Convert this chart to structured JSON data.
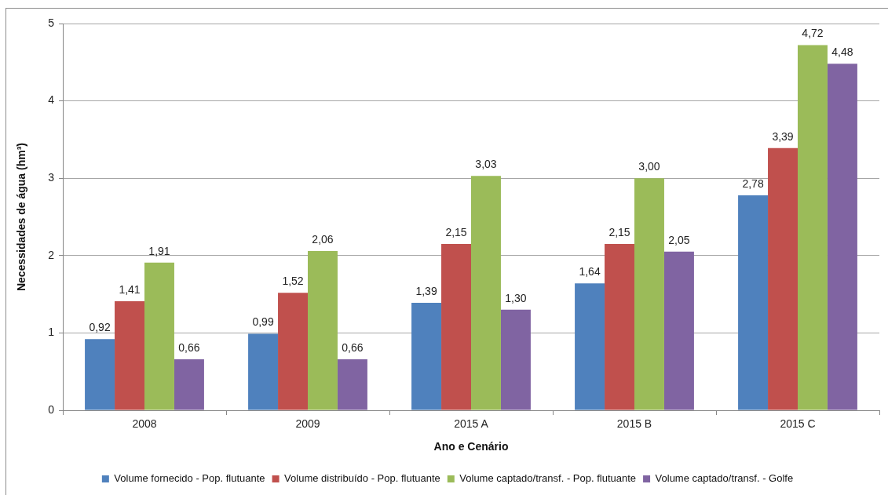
{
  "chart_data": {
    "type": "bar",
    "xlabel": "Ano e Cenário",
    "ylabel": "Necessidades de água (hm³)",
    "categories": [
      "2008",
      "2009",
      "2015 A",
      "2015 B",
      "2015 C"
    ],
    "series": [
      {
        "name": "Volume fornecido - Pop. flutuante",
        "color": "#4f81bd",
        "values": [
          0.92,
          0.99,
          1.39,
          1.64,
          2.78
        ],
        "value_labels": [
          "0,92",
          "0,99",
          "1,39",
          "1,64",
          "2,78"
        ]
      },
      {
        "name": "Volume distribuído - Pop. flutuante",
        "color": "#c0504d",
        "values": [
          1.41,
          1.52,
          2.15,
          2.15,
          3.39
        ],
        "value_labels": [
          "1,41",
          "1,52",
          "2,15",
          "2,15",
          "3,39"
        ]
      },
      {
        "name": "Volume captado/transf. - Pop. flutuante",
        "color": "#9bbb59",
        "values": [
          1.91,
          2.06,
          3.03,
          3.0,
          4.72
        ],
        "value_labels": [
          "1,91",
          "2,06",
          "3,03",
          "3,00",
          "4,72"
        ]
      },
      {
        "name": "Volume captado/transf. - Golfe",
        "color": "#8064a2",
        "values": [
          0.66,
          0.66,
          1.3,
          2.05,
          4.48
        ],
        "value_labels": [
          "0,66",
          "0,66",
          "1,30",
          "2,05",
          "4,48"
        ]
      }
    ],
    "ylim": [
      0,
      5
    ],
    "yticks": [
      0,
      1,
      2,
      3,
      4,
      5
    ],
    "grid": "y",
    "legend": "bottom"
  }
}
